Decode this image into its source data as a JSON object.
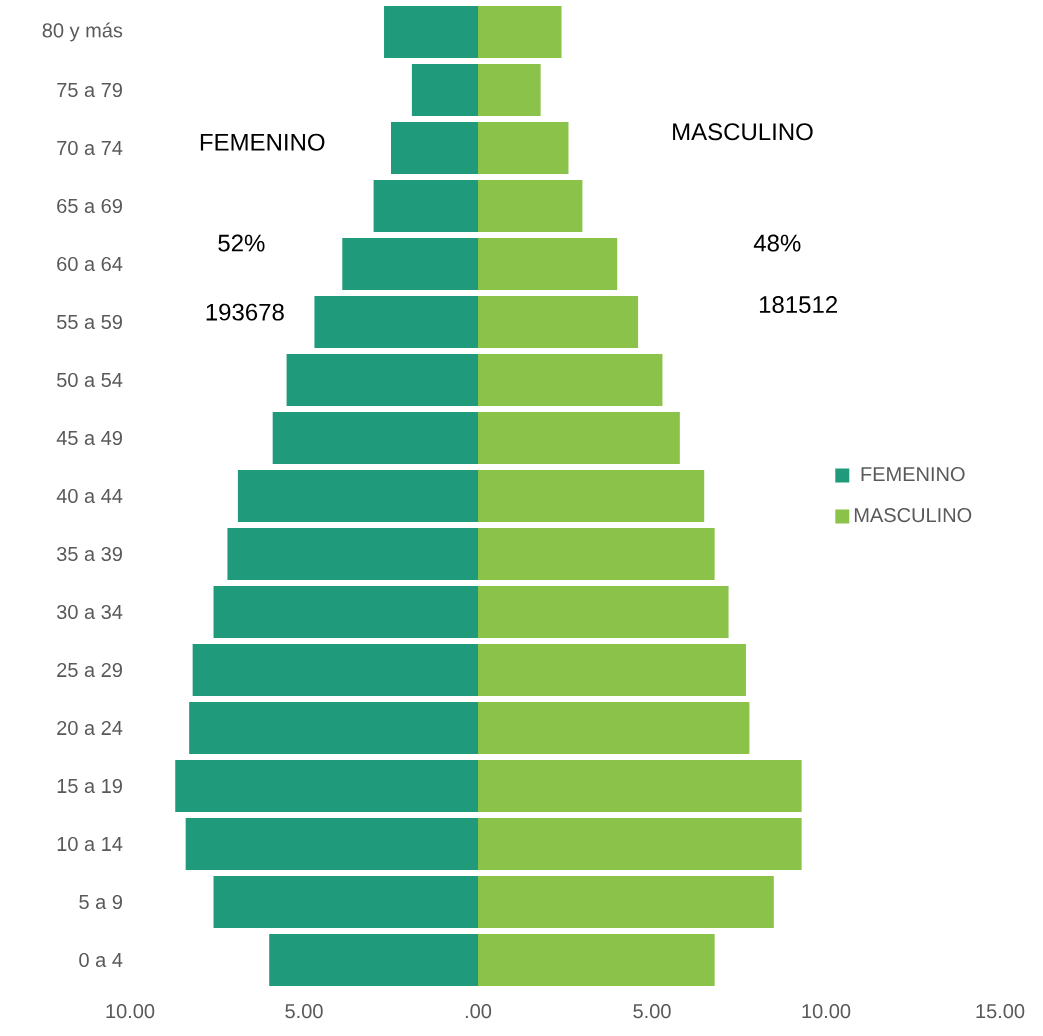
{
  "chart_data": {
    "type": "bar",
    "orientation": "horizontal",
    "stacked": true,
    "legend": "right",
    "categories": [
      "80 y más",
      "75 a 79",
      "70 a 74",
      "65 a 69",
      "60 a 64",
      "55 a 59",
      "50 a 54",
      "45 a 49",
      "40 a 44",
      "35 a 39",
      "30 a 34",
      "25 a 29",
      "20 a 24",
      "15 a 19",
      "10 a 14",
      "5 a 9",
      "0 a 4"
    ],
    "series": [
      {
        "name": "FEMENINO",
        "color": "#1f9a7a",
        "values": [
          -2.7,
          -1.9,
          -2.5,
          -3.0,
          -3.9,
          -4.7,
          -5.5,
          -5.9,
          -6.9,
          -7.2,
          -7.6,
          -8.2,
          -8.3,
          -8.7,
          -8.4,
          -7.6,
          -6.0
        ]
      },
      {
        "name": "MASCULINO",
        "color": "#8bc34a",
        "values": [
          2.4,
          1.8,
          2.6,
          3.0,
          4.0,
          4.6,
          5.3,
          5.8,
          6.5,
          6.8,
          7.2,
          7.7,
          7.8,
          9.3,
          9.3,
          8.5,
          6.8
        ]
      }
    ],
    "xlim": [
      -10,
      15
    ],
    "xticks": [
      {
        "value": -10,
        "label": "10.00"
      },
      {
        "value": -5,
        "label": "5.00"
      },
      {
        "value": 0,
        "label": ".00"
      },
      {
        "value": 5,
        "label": "5.00"
      },
      {
        "value": 10,
        "label": "10.00"
      },
      {
        "value": 15,
        "label": "15.00"
      }
    ],
    "annotations": [
      "FEMENINO",
      "MASCULINO",
      "52%",
      "48%",
      "193678",
      "181512"
    ]
  }
}
